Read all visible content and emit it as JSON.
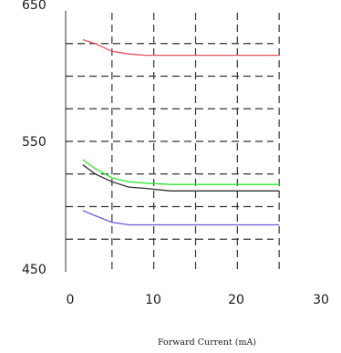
{
  "chart_data": {
    "type": "line",
    "title": "",
    "xlabel": "Forward Current (mA)",
    "ylabel": "",
    "xlim": [
      0,
      30
    ],
    "ylim": [
      450,
      650
    ],
    "x_ticks": [
      "0",
      "10",
      "20",
      "30"
    ],
    "y_ticks": [
      "650",
      "550",
      "450"
    ],
    "x_grid": [
      5,
      10,
      15,
      20,
      25
    ],
    "y_grid": [
      475,
      500,
      525,
      550,
      575,
      600,
      625
    ],
    "grid": true,
    "legend": "none",
    "series": [
      {
        "color": "#e8505b",
        "x": [
          1.5,
          3,
          5,
          7,
          9,
          12,
          15,
          20,
          25
        ],
        "y": [
          628,
          625,
          619,
          617,
          616,
          616,
          616,
          616,
          616
        ]
      },
      {
        "color": "#2ee82e",
        "x": [
          1.5,
          3,
          5,
          7,
          9,
          12,
          15,
          20,
          25
        ],
        "y": [
          536,
          529,
          522,
          519,
          518,
          517,
          517,
          517,
          517
        ]
      },
      {
        "color": "#303030",
        "x": [
          1.5,
          3,
          5,
          7,
          9,
          12,
          15,
          20,
          25
        ],
        "y": [
          532,
          525,
          519,
          515,
          514,
          512,
          512,
          512,
          512
        ]
      },
      {
        "color": "#6a5cdc",
        "x": [
          1.5,
          3,
          5,
          7,
          9,
          12,
          15,
          20,
          25
        ],
        "y": [
          497,
          493,
          488,
          486,
          486,
          486,
          486,
          486,
          486
        ]
      }
    ]
  }
}
